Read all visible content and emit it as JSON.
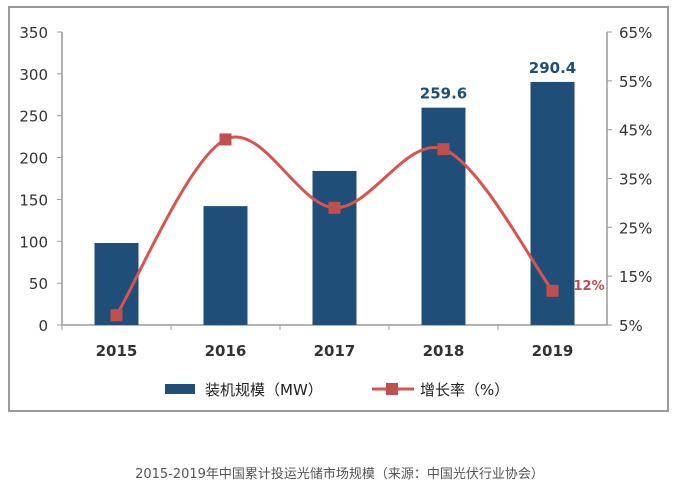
{
  "chart_data": {
    "type": "bar",
    "categories": [
      "2015",
      "2016",
      "2017",
      "2018",
      "2019"
    ],
    "series": [
      {
        "name": "装机规模（MW）",
        "type": "bar",
        "axis": "left",
        "values": [
          98,
          142,
          184,
          259.6,
          290.4
        ],
        "data_labels": [
          "",
          "",
          "",
          "259.6",
          "290.4"
        ]
      },
      {
        "name": "增长率（%）",
        "type": "line",
        "axis": "right",
        "values": [
          7,
          43,
          29,
          41,
          12
        ],
        "data_labels": [
          "",
          "",
          "",
          "",
          "12%"
        ]
      }
    ],
    "y_left": {
      "ylim": [
        0,
        350
      ],
      "ticks": [
        "0",
        "50",
        "100",
        "150",
        "200",
        "250",
        "300",
        "350"
      ]
    },
    "y_right": {
      "ylim": [
        5,
        65
      ],
      "ticks": [
        "5%",
        "15%",
        "25%",
        "35%",
        "45%",
        "55%",
        "65%"
      ]
    },
    "grid": false,
    "legend": "bottom",
    "colors": {
      "bar": "#1f4e79",
      "line": "#d9534f",
      "marker": "#c0504d",
      "bar_label": "#1f4e79",
      "line_label": "#c0504d"
    }
  },
  "caption": "2015-2019年中国累计投运光储市场规模（来源：中国光伏行业协会）"
}
